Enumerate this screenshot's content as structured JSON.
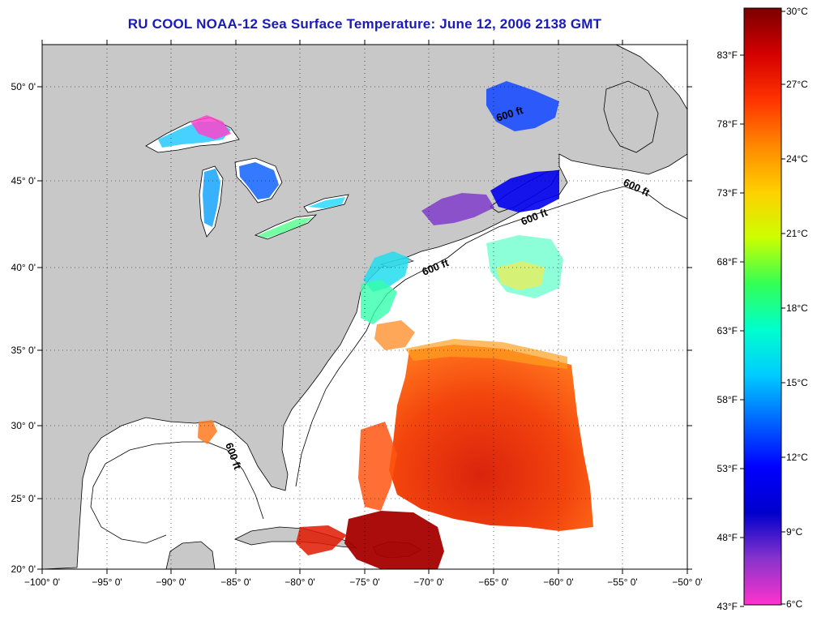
{
  "title": "RU COOL  NOAA-12  Sea Surface Temperature:  June 12, 2006 2138 GMT",
  "map": {
    "lon_ticks": [
      "−100° 0'",
      "−95° 0'",
      "−90° 0'",
      "−85° 0'",
      "−80° 0'",
      "−75° 0'",
      "−70° 0'",
      "−65° 0'",
      "−60° 0'",
      "−55° 0'",
      "−50° 0'"
    ],
    "lat_ticks": [
      "50° 0'",
      "45° 0'",
      "40° 0'",
      "35° 0'",
      "30° 0'",
      "25° 0'",
      "20° 0'"
    ],
    "land_color": "#c8c8c8",
    "ocean_color": "#ffffff",
    "isobath_labels": [
      "600 ft",
      "600 ft",
      "600 ft",
      "600 ft"
    ]
  },
  "colorbar": {
    "fahrenheit": [
      "83°F",
      "78°F",
      "73°F",
      "68°F",
      "63°F",
      "58°F",
      "53°F",
      "48°F",
      "43°F"
    ],
    "celsius": [
      "30°C",
      "27°C",
      "24°C",
      "21°C",
      "18°C",
      "15°C",
      "12°C",
      "9°C",
      "6°C"
    ],
    "stops": [
      "#7a0000",
      "#d40000",
      "#ff3300",
      "#ff8800",
      "#ffd000",
      "#ccff00",
      "#33ff55",
      "#00ffcc",
      "#00ccff",
      "#0066ff",
      "#0000ff",
      "#0000cc",
      "#8833cc",
      "#ff33cc"
    ]
  }
}
